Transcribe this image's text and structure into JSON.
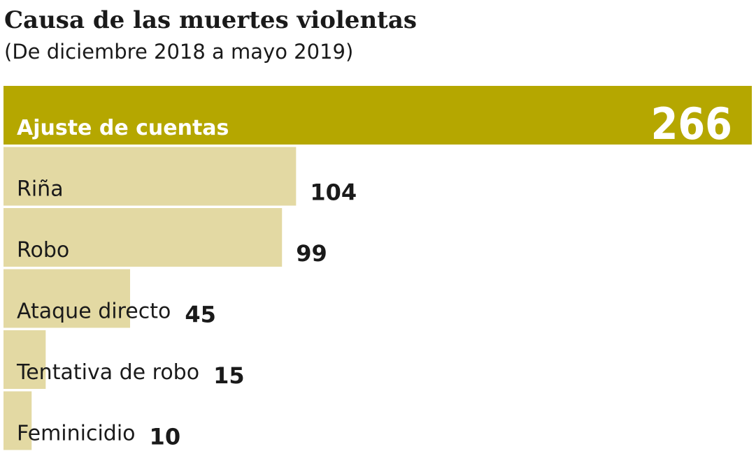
{
  "chart_data": {
    "type": "bar",
    "orientation": "horizontal",
    "title": "Causa de las muertes violentas",
    "subtitle": "(De diciembre 2018 a mayo 2019)",
    "categories": [
      "Ajuste de cuentas",
      "Riña",
      "Robo",
      "Ataque directo",
      "Tentativa de robo",
      "Feminicidio"
    ],
    "values": [
      266,
      104,
      99,
      45,
      15,
      10
    ],
    "colors": [
      "#b5a700",
      "#e3d9a3",
      "#e3d9a3",
      "#e3d9a3",
      "#e3d9a3",
      "#e3d9a3"
    ]
  }
}
